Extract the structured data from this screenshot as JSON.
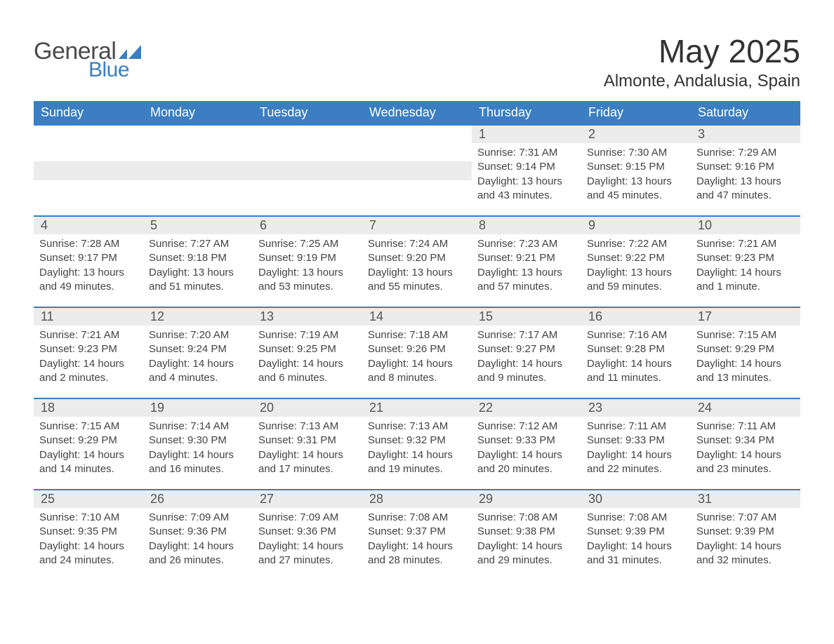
{
  "logo": {
    "word1": "General",
    "word2": "Blue",
    "text_color": "#4a4a4a",
    "accent_color": "#3b7ec2"
  },
  "title": "May 2025",
  "location": "Almonte, Andalusia, Spain",
  "columns": [
    "Sunday",
    "Monday",
    "Tuesday",
    "Wednesday",
    "Thursday",
    "Friday",
    "Saturday"
  ],
  "header_bg": "#3b7ec2",
  "header_text_color": "#ffffff",
  "row_border_color": "#3b7ec2",
  "daynum_bg": "#ececec",
  "text_color": "#444444",
  "background_color": "#ffffff",
  "days": {
    "1": {
      "sunrise": "7:31 AM",
      "sunset": "9:14 PM",
      "daylight": "13 hours and 43 minutes."
    },
    "2": {
      "sunrise": "7:30 AM",
      "sunset": "9:15 PM",
      "daylight": "13 hours and 45 minutes."
    },
    "3": {
      "sunrise": "7:29 AM",
      "sunset": "9:16 PM",
      "daylight": "13 hours and 47 minutes."
    },
    "4": {
      "sunrise": "7:28 AM",
      "sunset": "9:17 PM",
      "daylight": "13 hours and 49 minutes."
    },
    "5": {
      "sunrise": "7:27 AM",
      "sunset": "9:18 PM",
      "daylight": "13 hours and 51 minutes."
    },
    "6": {
      "sunrise": "7:25 AM",
      "sunset": "9:19 PM",
      "daylight": "13 hours and 53 minutes."
    },
    "7": {
      "sunrise": "7:24 AM",
      "sunset": "9:20 PM",
      "daylight": "13 hours and 55 minutes."
    },
    "8": {
      "sunrise": "7:23 AM",
      "sunset": "9:21 PM",
      "daylight": "13 hours and 57 minutes."
    },
    "9": {
      "sunrise": "7:22 AM",
      "sunset": "9:22 PM",
      "daylight": "13 hours and 59 minutes."
    },
    "10": {
      "sunrise": "7:21 AM",
      "sunset": "9:23 PM",
      "daylight": "14 hours and 1 minute."
    },
    "11": {
      "sunrise": "7:21 AM",
      "sunset": "9:23 PM",
      "daylight": "14 hours and 2 minutes."
    },
    "12": {
      "sunrise": "7:20 AM",
      "sunset": "9:24 PM",
      "daylight": "14 hours and 4 minutes."
    },
    "13": {
      "sunrise": "7:19 AM",
      "sunset": "9:25 PM",
      "daylight": "14 hours and 6 minutes."
    },
    "14": {
      "sunrise": "7:18 AM",
      "sunset": "9:26 PM",
      "daylight": "14 hours and 8 minutes."
    },
    "15": {
      "sunrise": "7:17 AM",
      "sunset": "9:27 PM",
      "daylight": "14 hours and 9 minutes."
    },
    "16": {
      "sunrise": "7:16 AM",
      "sunset": "9:28 PM",
      "daylight": "14 hours and 11 minutes."
    },
    "17": {
      "sunrise": "7:15 AM",
      "sunset": "9:29 PM",
      "daylight": "14 hours and 13 minutes."
    },
    "18": {
      "sunrise": "7:15 AM",
      "sunset": "9:29 PM",
      "daylight": "14 hours and 14 minutes."
    },
    "19": {
      "sunrise": "7:14 AM",
      "sunset": "9:30 PM",
      "daylight": "14 hours and 16 minutes."
    },
    "20": {
      "sunrise": "7:13 AM",
      "sunset": "9:31 PM",
      "daylight": "14 hours and 17 minutes."
    },
    "21": {
      "sunrise": "7:13 AM",
      "sunset": "9:32 PM",
      "daylight": "14 hours and 19 minutes."
    },
    "22": {
      "sunrise": "7:12 AM",
      "sunset": "9:33 PM",
      "daylight": "14 hours and 20 minutes."
    },
    "23": {
      "sunrise": "7:11 AM",
      "sunset": "9:33 PM",
      "daylight": "14 hours and 22 minutes."
    },
    "24": {
      "sunrise": "7:11 AM",
      "sunset": "9:34 PM",
      "daylight": "14 hours and 23 minutes."
    },
    "25": {
      "sunrise": "7:10 AM",
      "sunset": "9:35 PM",
      "daylight": "14 hours and 24 minutes."
    },
    "26": {
      "sunrise": "7:09 AM",
      "sunset": "9:36 PM",
      "daylight": "14 hours and 26 minutes."
    },
    "27": {
      "sunrise": "7:09 AM",
      "sunset": "9:36 PM",
      "daylight": "14 hours and 27 minutes."
    },
    "28": {
      "sunrise": "7:08 AM",
      "sunset": "9:37 PM",
      "daylight": "14 hours and 28 minutes."
    },
    "29": {
      "sunrise": "7:08 AM",
      "sunset": "9:38 PM",
      "daylight": "14 hours and 29 minutes."
    },
    "30": {
      "sunrise": "7:08 AM",
      "sunset": "9:39 PM",
      "daylight": "14 hours and 31 minutes."
    },
    "31": {
      "sunrise": "7:07 AM",
      "sunset": "9:39 PM",
      "daylight": "14 hours and 32 minutes."
    }
  },
  "labels": {
    "sunrise": "Sunrise: ",
    "sunset": "Sunset: ",
    "daylight": "Daylight: "
  },
  "grid": [
    [
      null,
      null,
      null,
      null,
      "1",
      "2",
      "3"
    ],
    [
      "4",
      "5",
      "6",
      "7",
      "8",
      "9",
      "10"
    ],
    [
      "11",
      "12",
      "13",
      "14",
      "15",
      "16",
      "17"
    ],
    [
      "18",
      "19",
      "20",
      "21",
      "22",
      "23",
      "24"
    ],
    [
      "25",
      "26",
      "27",
      "28",
      "29",
      "30",
      "31"
    ]
  ]
}
